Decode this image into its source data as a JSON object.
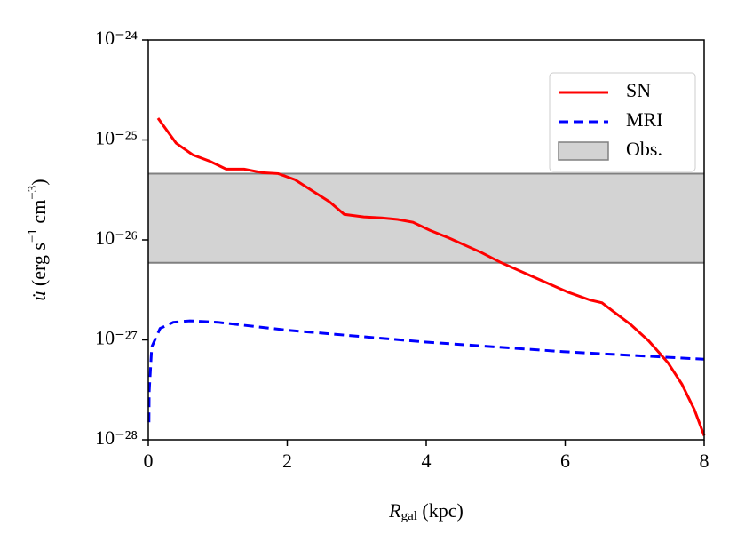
{
  "chart_data": {
    "type": "line",
    "xlabel": [
      "R",
      "gal",
      " (kpc)"
    ],
    "ylabel": [
      "u̇",
      " (erg s",
      "−1",
      " cm",
      "−3",
      ")"
    ],
    "xlim": [
      0,
      8
    ],
    "xticks": [
      0,
      2,
      4,
      6,
      8
    ],
    "ylim": [
      1e-28,
      1e-24
    ],
    "yscale": "log",
    "yticks": [
      {
        "value": 1e-28,
        "label": "10⁻²⁸"
      },
      {
        "value": 1e-27,
        "label": "10⁻²⁷"
      },
      {
        "value": 1e-26,
        "label": "10⁻²⁶"
      },
      {
        "value": 1e-25,
        "label": "10⁻²⁵"
      },
      {
        "value": 1e-24,
        "label": "10⁻²⁴"
      }
    ],
    "legend": "upper right",
    "series": [
      {
        "name": "SN",
        "color": "#ff0000",
        "linestyle": "solid",
        "x": [
          0.14,
          0.4,
          0.64,
          0.89,
          1.12,
          1.38,
          1.64,
          1.87,
          2.11,
          2.36,
          2.61,
          2.82,
          3.1,
          3.36,
          3.59,
          3.81,
          4.05,
          4.32,
          4.55,
          4.79,
          5.06,
          5.53,
          6.04,
          6.36,
          6.53,
          6.68,
          6.94,
          7.2,
          7.48,
          7.68,
          7.86,
          8.0
        ],
        "values": [
          1.65e-25,
          9.3e-26,
          7.1e-26,
          6.1e-26,
          5.1e-26,
          5.1e-26,
          4.7e-26,
          4.6e-26,
          4e-26,
          3.1e-26,
          2.4e-26,
          1.8e-26,
          1.7e-26,
          1.66e-26,
          1.6e-26,
          1.5e-26,
          1.25e-26,
          1.05e-26,
          8.9e-27,
          7.5e-27,
          6e-27,
          4.3e-27,
          3e-27,
          2.5e-27,
          2.35e-27,
          1.95e-27,
          1.43e-27,
          9.8e-28,
          5.9e-28,
          3.6e-28,
          2e-28,
          1.1e-28
        ]
      },
      {
        "name": "MRI",
        "color": "#0000ff",
        "linestyle": "dashed",
        "x": [
          0.01,
          0.013,
          0.05,
          0.17,
          0.36,
          0.6,
          1.0,
          2.0,
          4.0,
          6.0,
          8.0
        ],
        "values": [
          1.5e-28,
          3e-28,
          8.5e-28,
          1.3e-27,
          1.5e-27,
          1.55e-27,
          1.5e-27,
          1.25e-27,
          9.5e-28,
          7.6e-28,
          6.4e-28
        ]
      }
    ],
    "band": {
      "name": "Obs.",
      "color": "#d3d3d3",
      "edgecolor": "#808080",
      "values": [
        5.9e-27,
        4.6e-26
      ]
    }
  }
}
